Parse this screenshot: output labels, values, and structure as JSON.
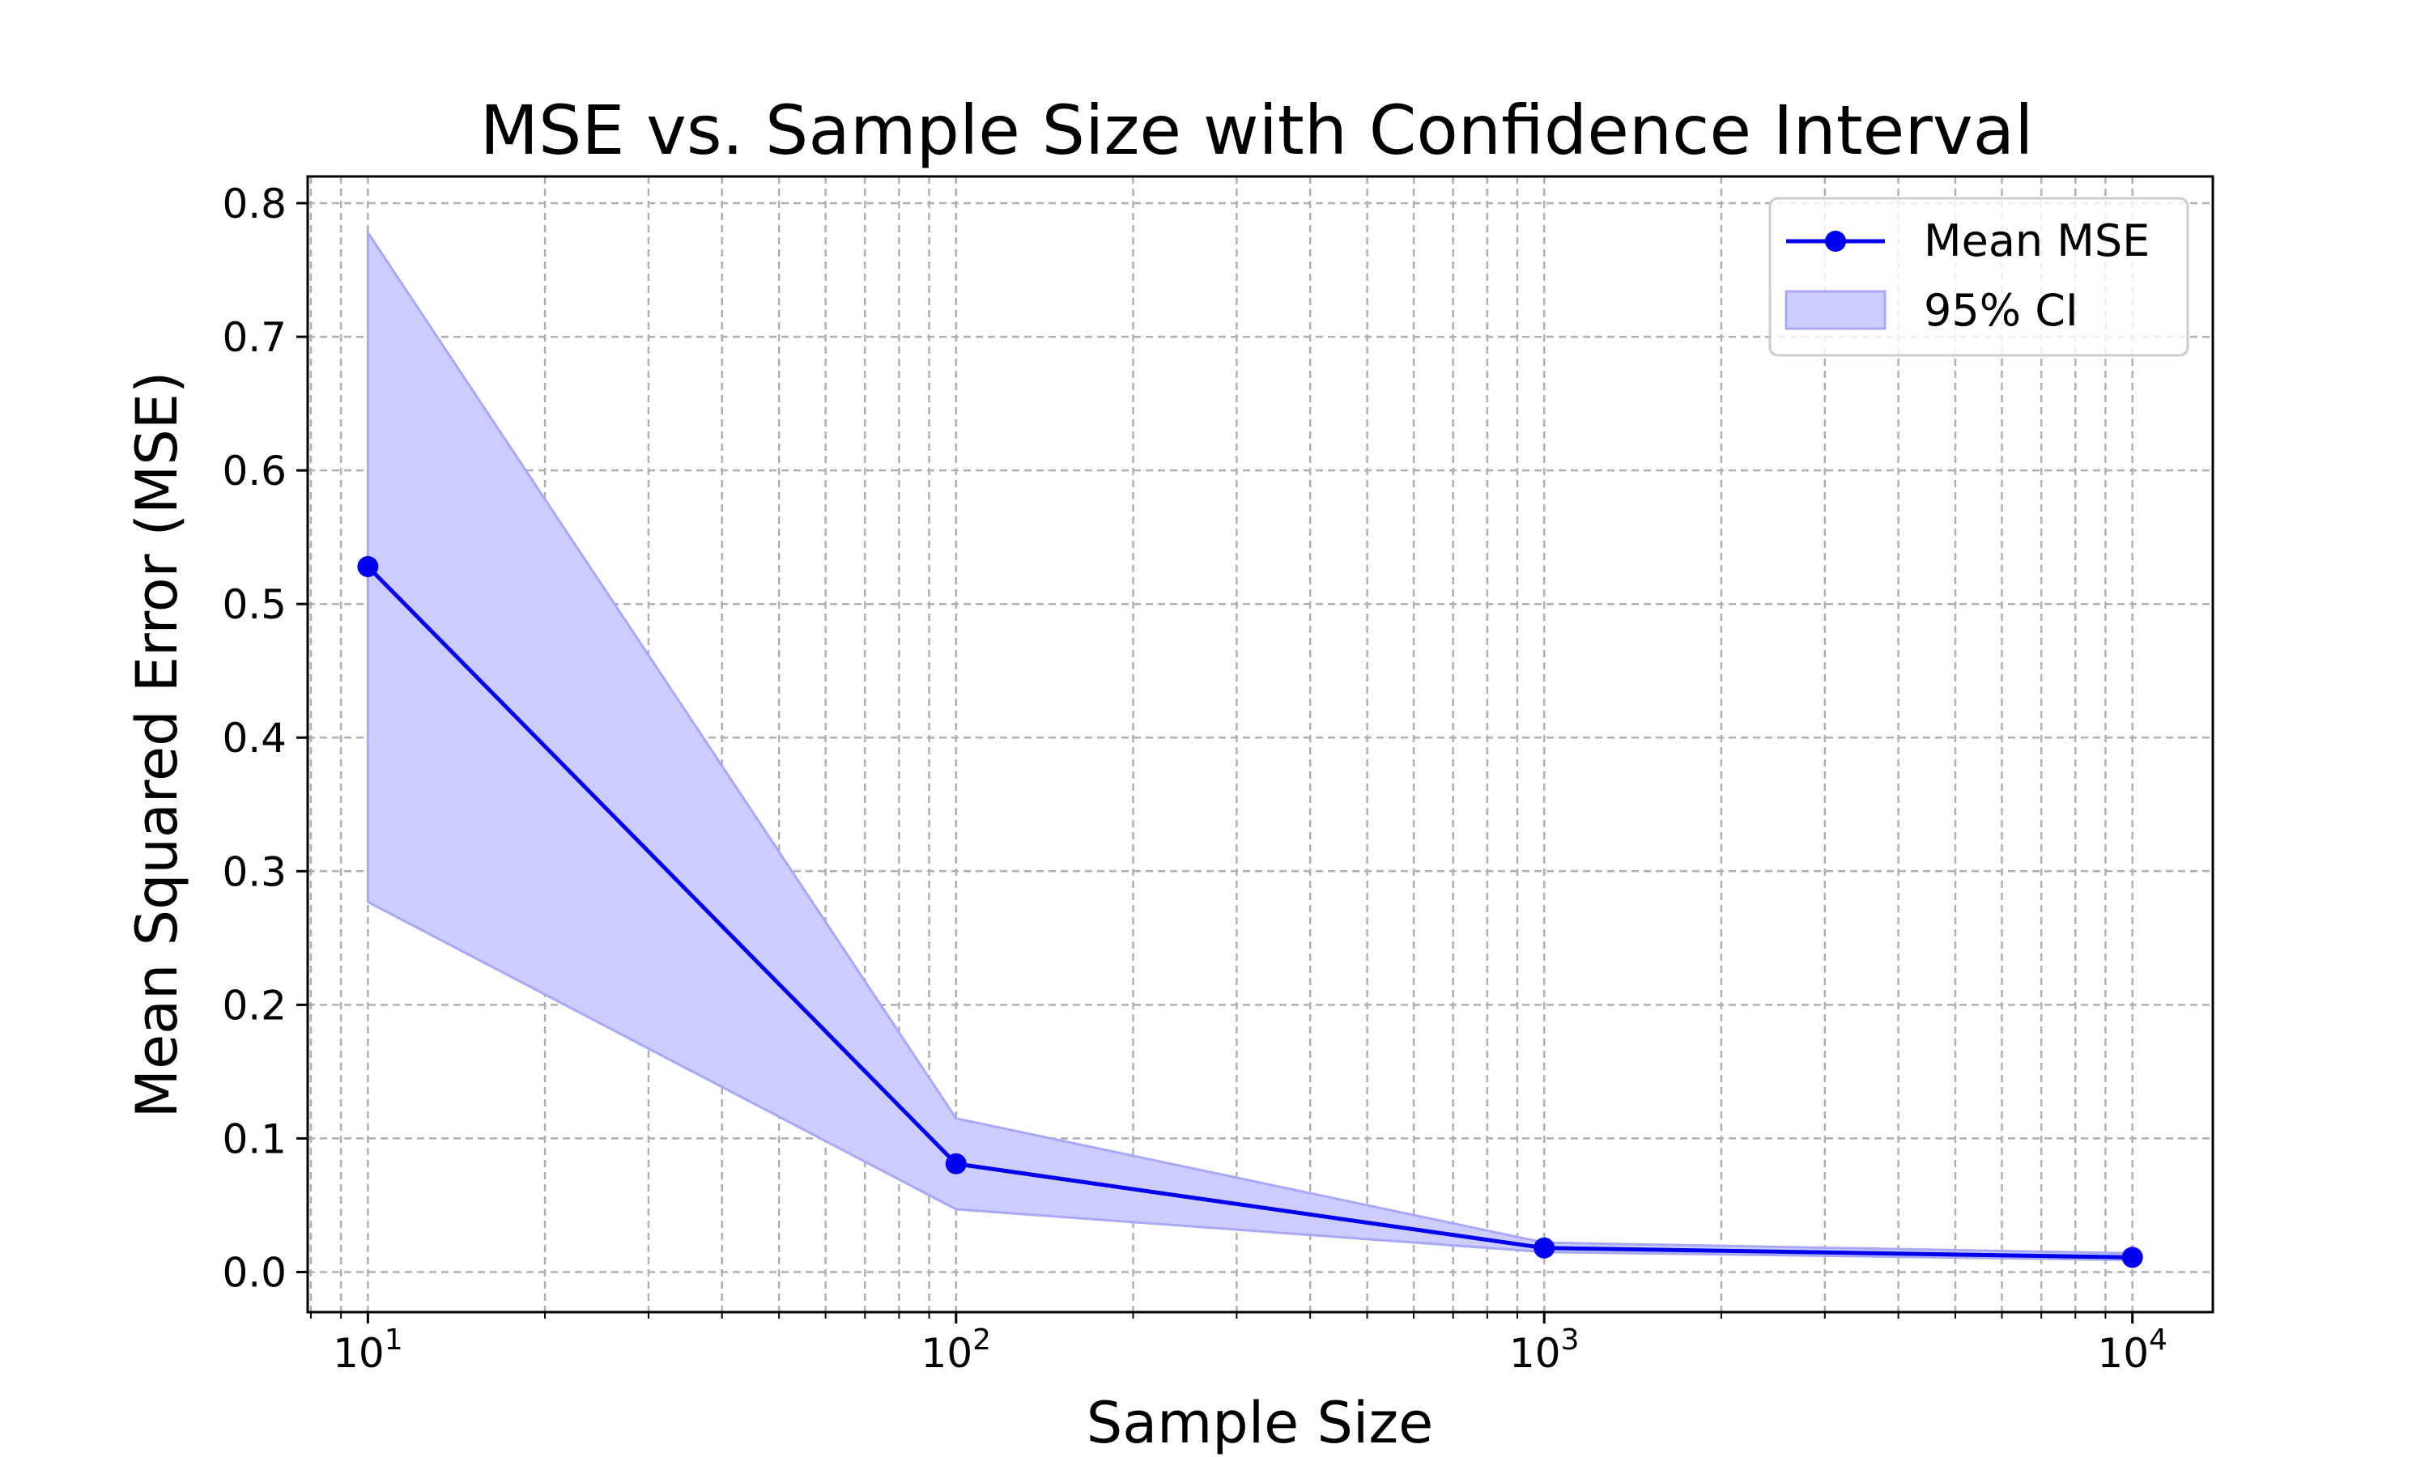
{
  "chart_data": {
    "type": "line",
    "title": "MSE vs. Sample Size with Confidence Interval",
    "xlabel": "Sample Size",
    "ylabel": "Mean Squared Error (MSE)",
    "x_scale": "log",
    "x": [
      10,
      100,
      1000,
      10000
    ],
    "xlim": [
      7.9,
      13700
    ],
    "ylim": [
      -0.03,
      0.82
    ],
    "x_ticks": [
      {
        "value": 10,
        "base": "10",
        "exp": "1"
      },
      {
        "value": 100,
        "base": "10",
        "exp": "2"
      },
      {
        "value": 1000,
        "base": "10",
        "exp": "3"
      },
      {
        "value": 10000,
        "base": "10",
        "exp": "4"
      }
    ],
    "y_ticks": [
      {
        "value": 0.0,
        "label": "0.0"
      },
      {
        "value": 0.1,
        "label": "0.1"
      },
      {
        "value": 0.2,
        "label": "0.2"
      },
      {
        "value": 0.3,
        "label": "0.3"
      },
      {
        "value": 0.4,
        "label": "0.4"
      },
      {
        "value": 0.5,
        "label": "0.5"
      },
      {
        "value": 0.6,
        "label": "0.6"
      },
      {
        "value": 0.7,
        "label": "0.7"
      },
      {
        "value": 0.8,
        "label": "0.8"
      }
    ],
    "grid": true,
    "legend_position": "top-right",
    "series": [
      {
        "name": "Mean MSE",
        "values": [
          0.528,
          0.081,
          0.018,
          0.011
        ],
        "color": "#0000ee"
      }
    ],
    "band": {
      "name": "95% CI",
      "lower": [
        0.277,
        0.047,
        0.015,
        0.009
      ],
      "upper": [
        0.778,
        0.115,
        0.022,
        0.014
      ],
      "color": "#ccccff",
      "edge_color": "#a8a8f5"
    }
  }
}
